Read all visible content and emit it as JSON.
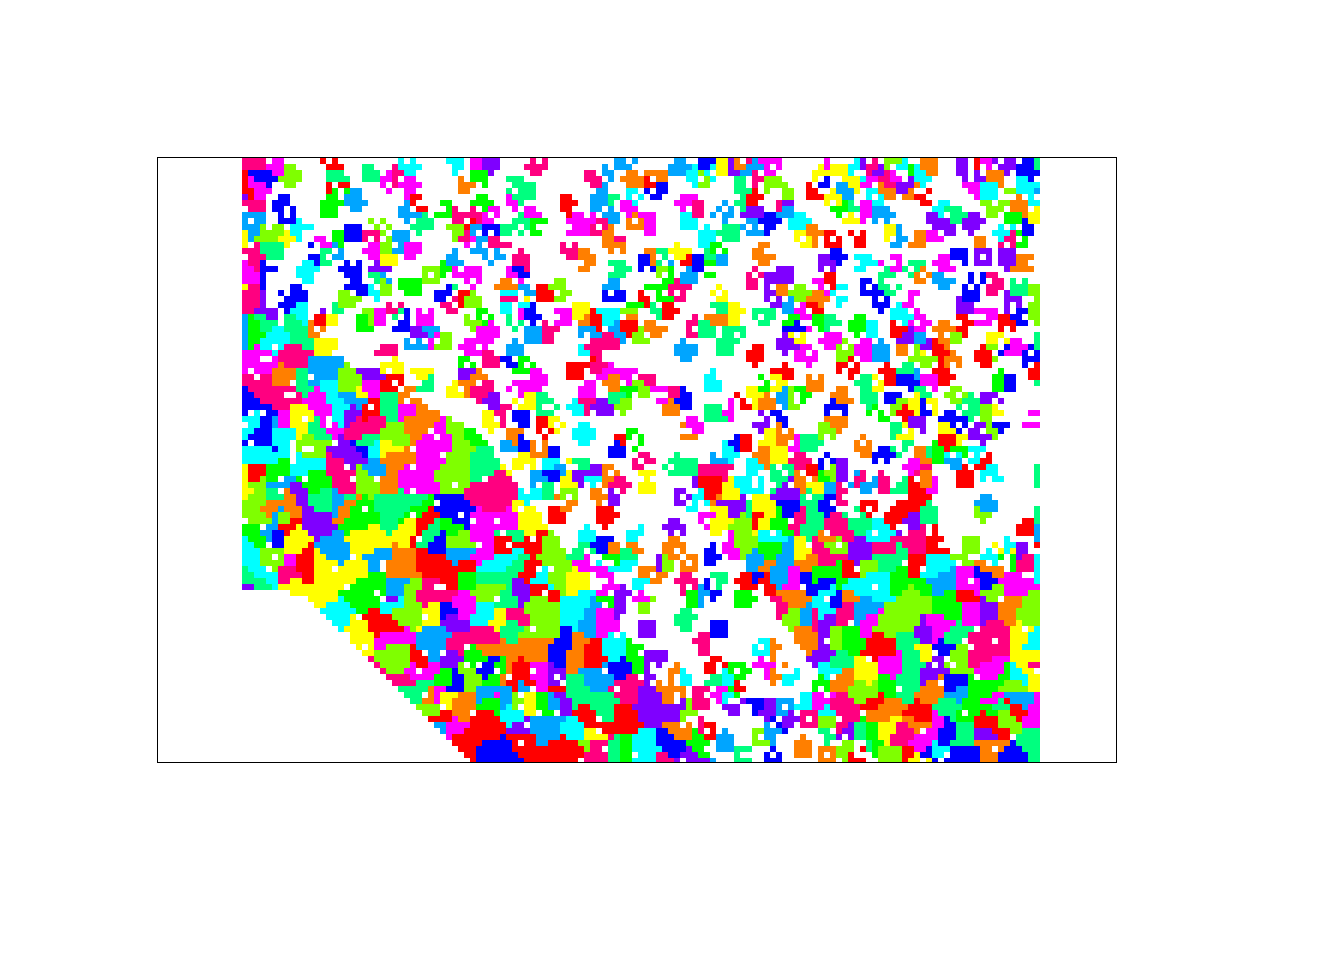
{
  "palette": [
    "#ff0000",
    "#ff00ff",
    "#0000ff",
    "#00ffff",
    "#00ff00",
    "#ffff00",
    "#ff7f00",
    "#7f00ff",
    "#00a5ff",
    "#7fff00",
    "#ff0080",
    "#00ff7f"
  ]
}
